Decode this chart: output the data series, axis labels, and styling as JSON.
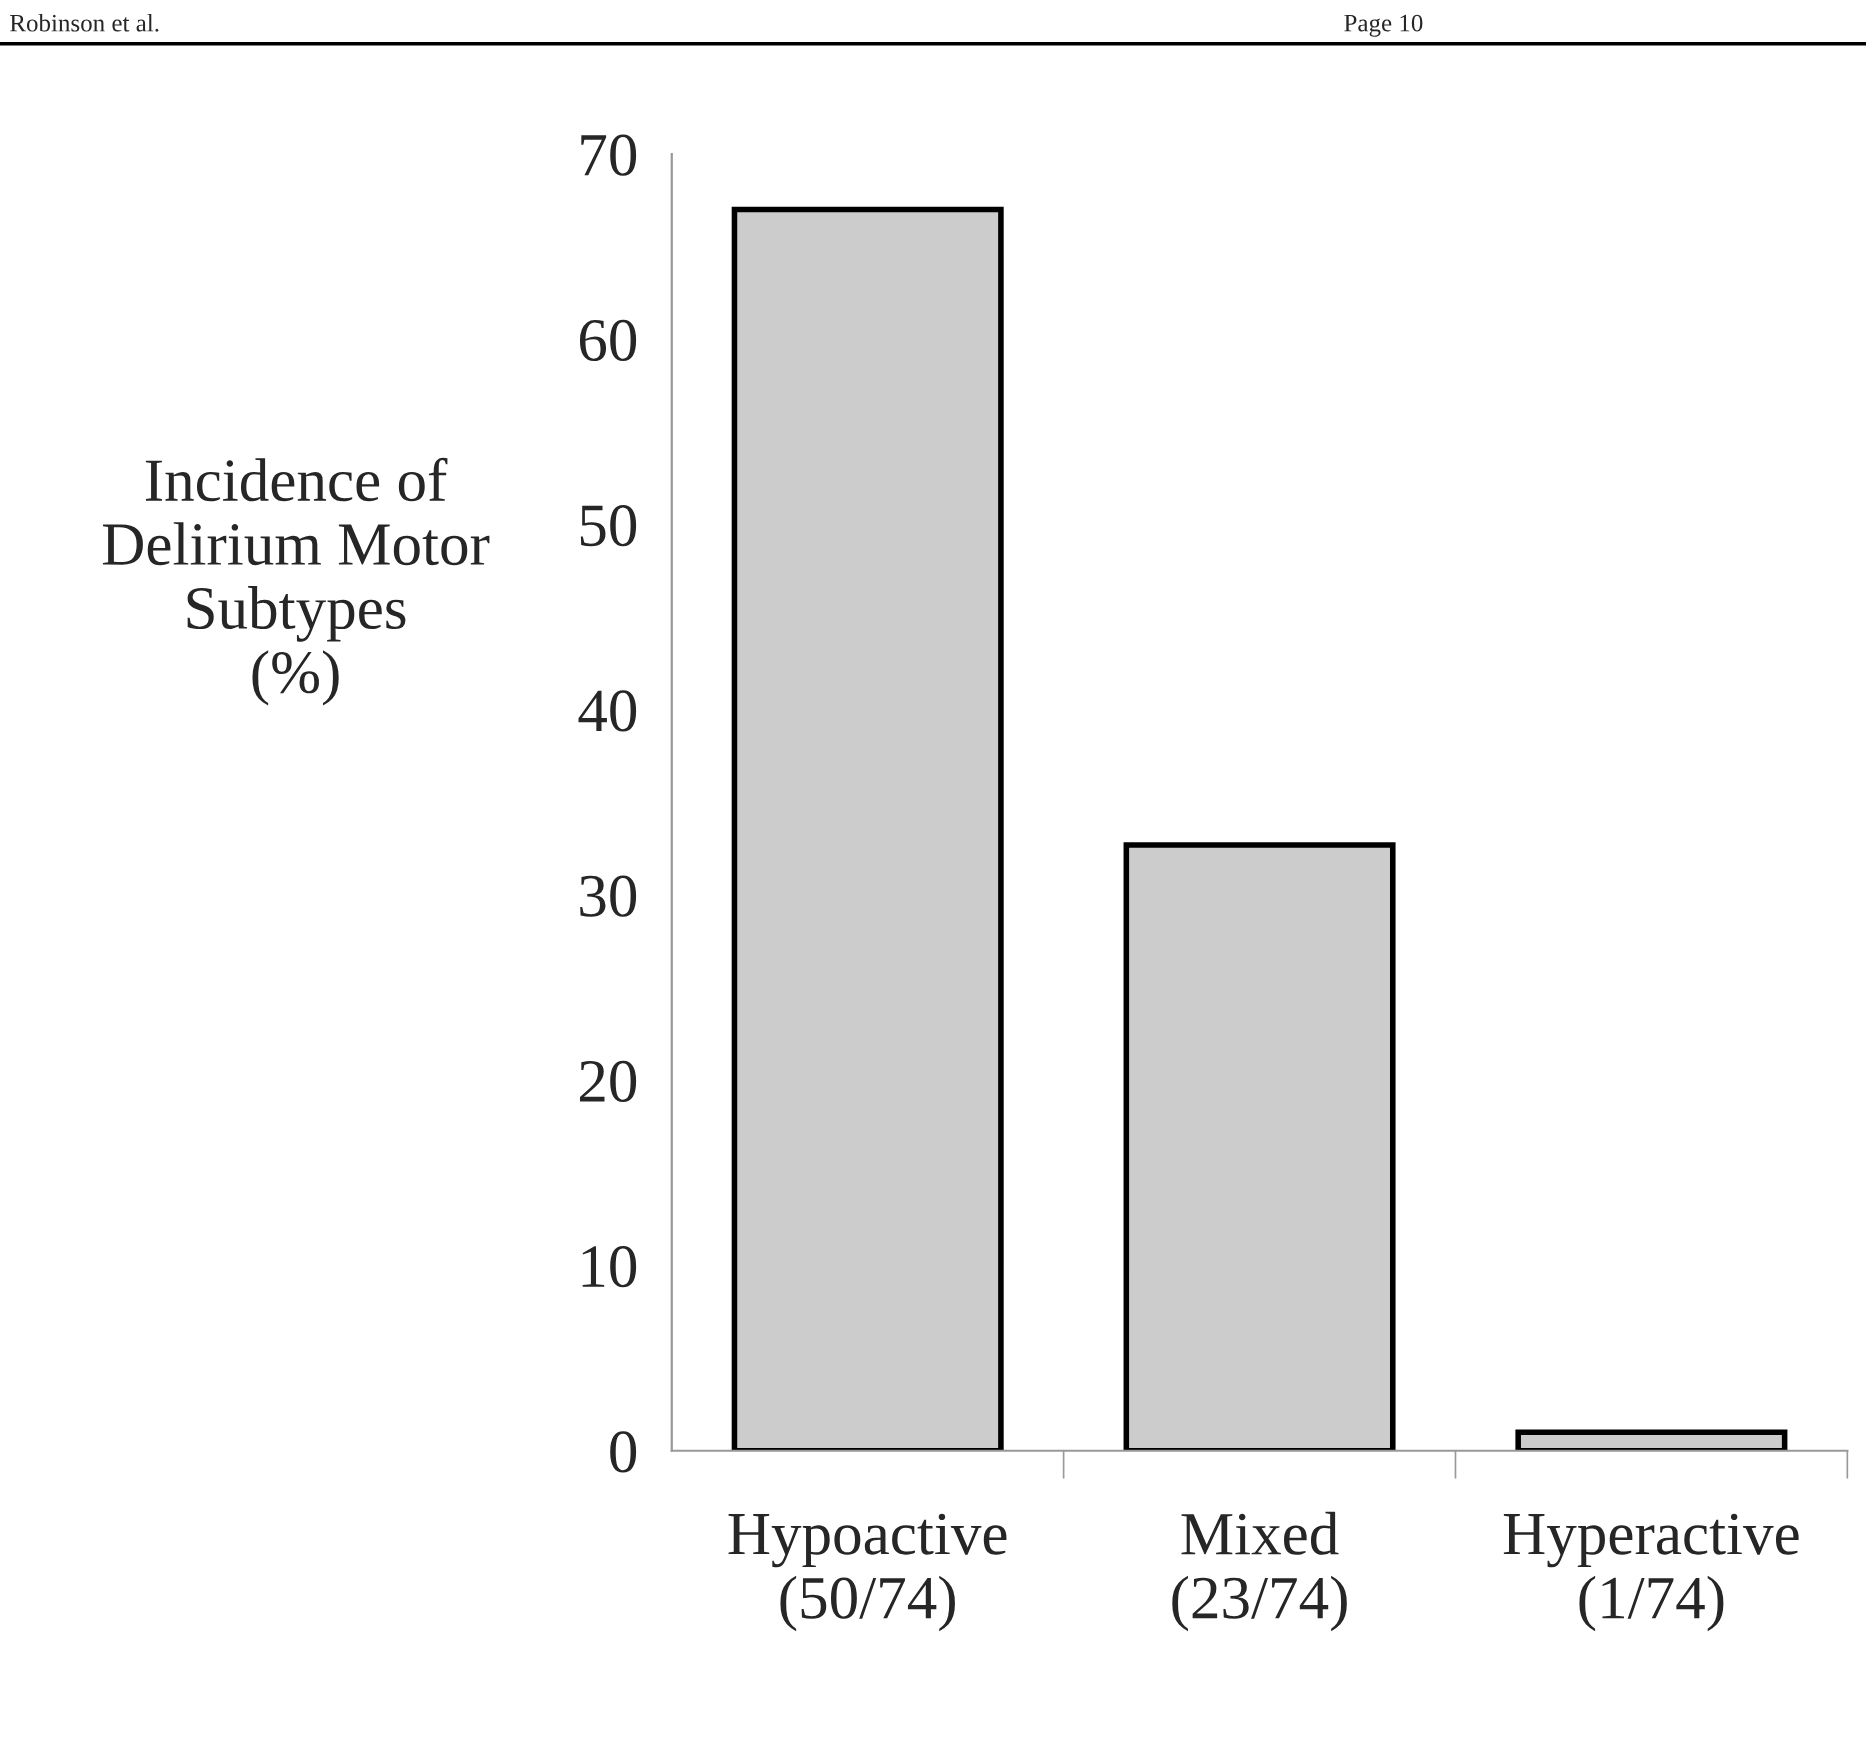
{
  "chart_data": {
    "type": "bar",
    "ylabel": "Incidence of\nDelirium Motor\nSubtypes\n(%)",
    "categories": [
      "Hypoactive\n(50/74)",
      "Mixed\n(23/74)",
      "Hyperactive\n(1/74)"
    ],
    "values": [
      67,
      32.7,
      1
    ],
    "color": "#cccccc",
    "ylim": [
      0,
      70
    ],
    "yticks": [
      0,
      10,
      20,
      30,
      40,
      50,
      60,
      70
    ],
    "annotations": [
      "Robinson et al.",
      "Page 10"
    ]
  }
}
